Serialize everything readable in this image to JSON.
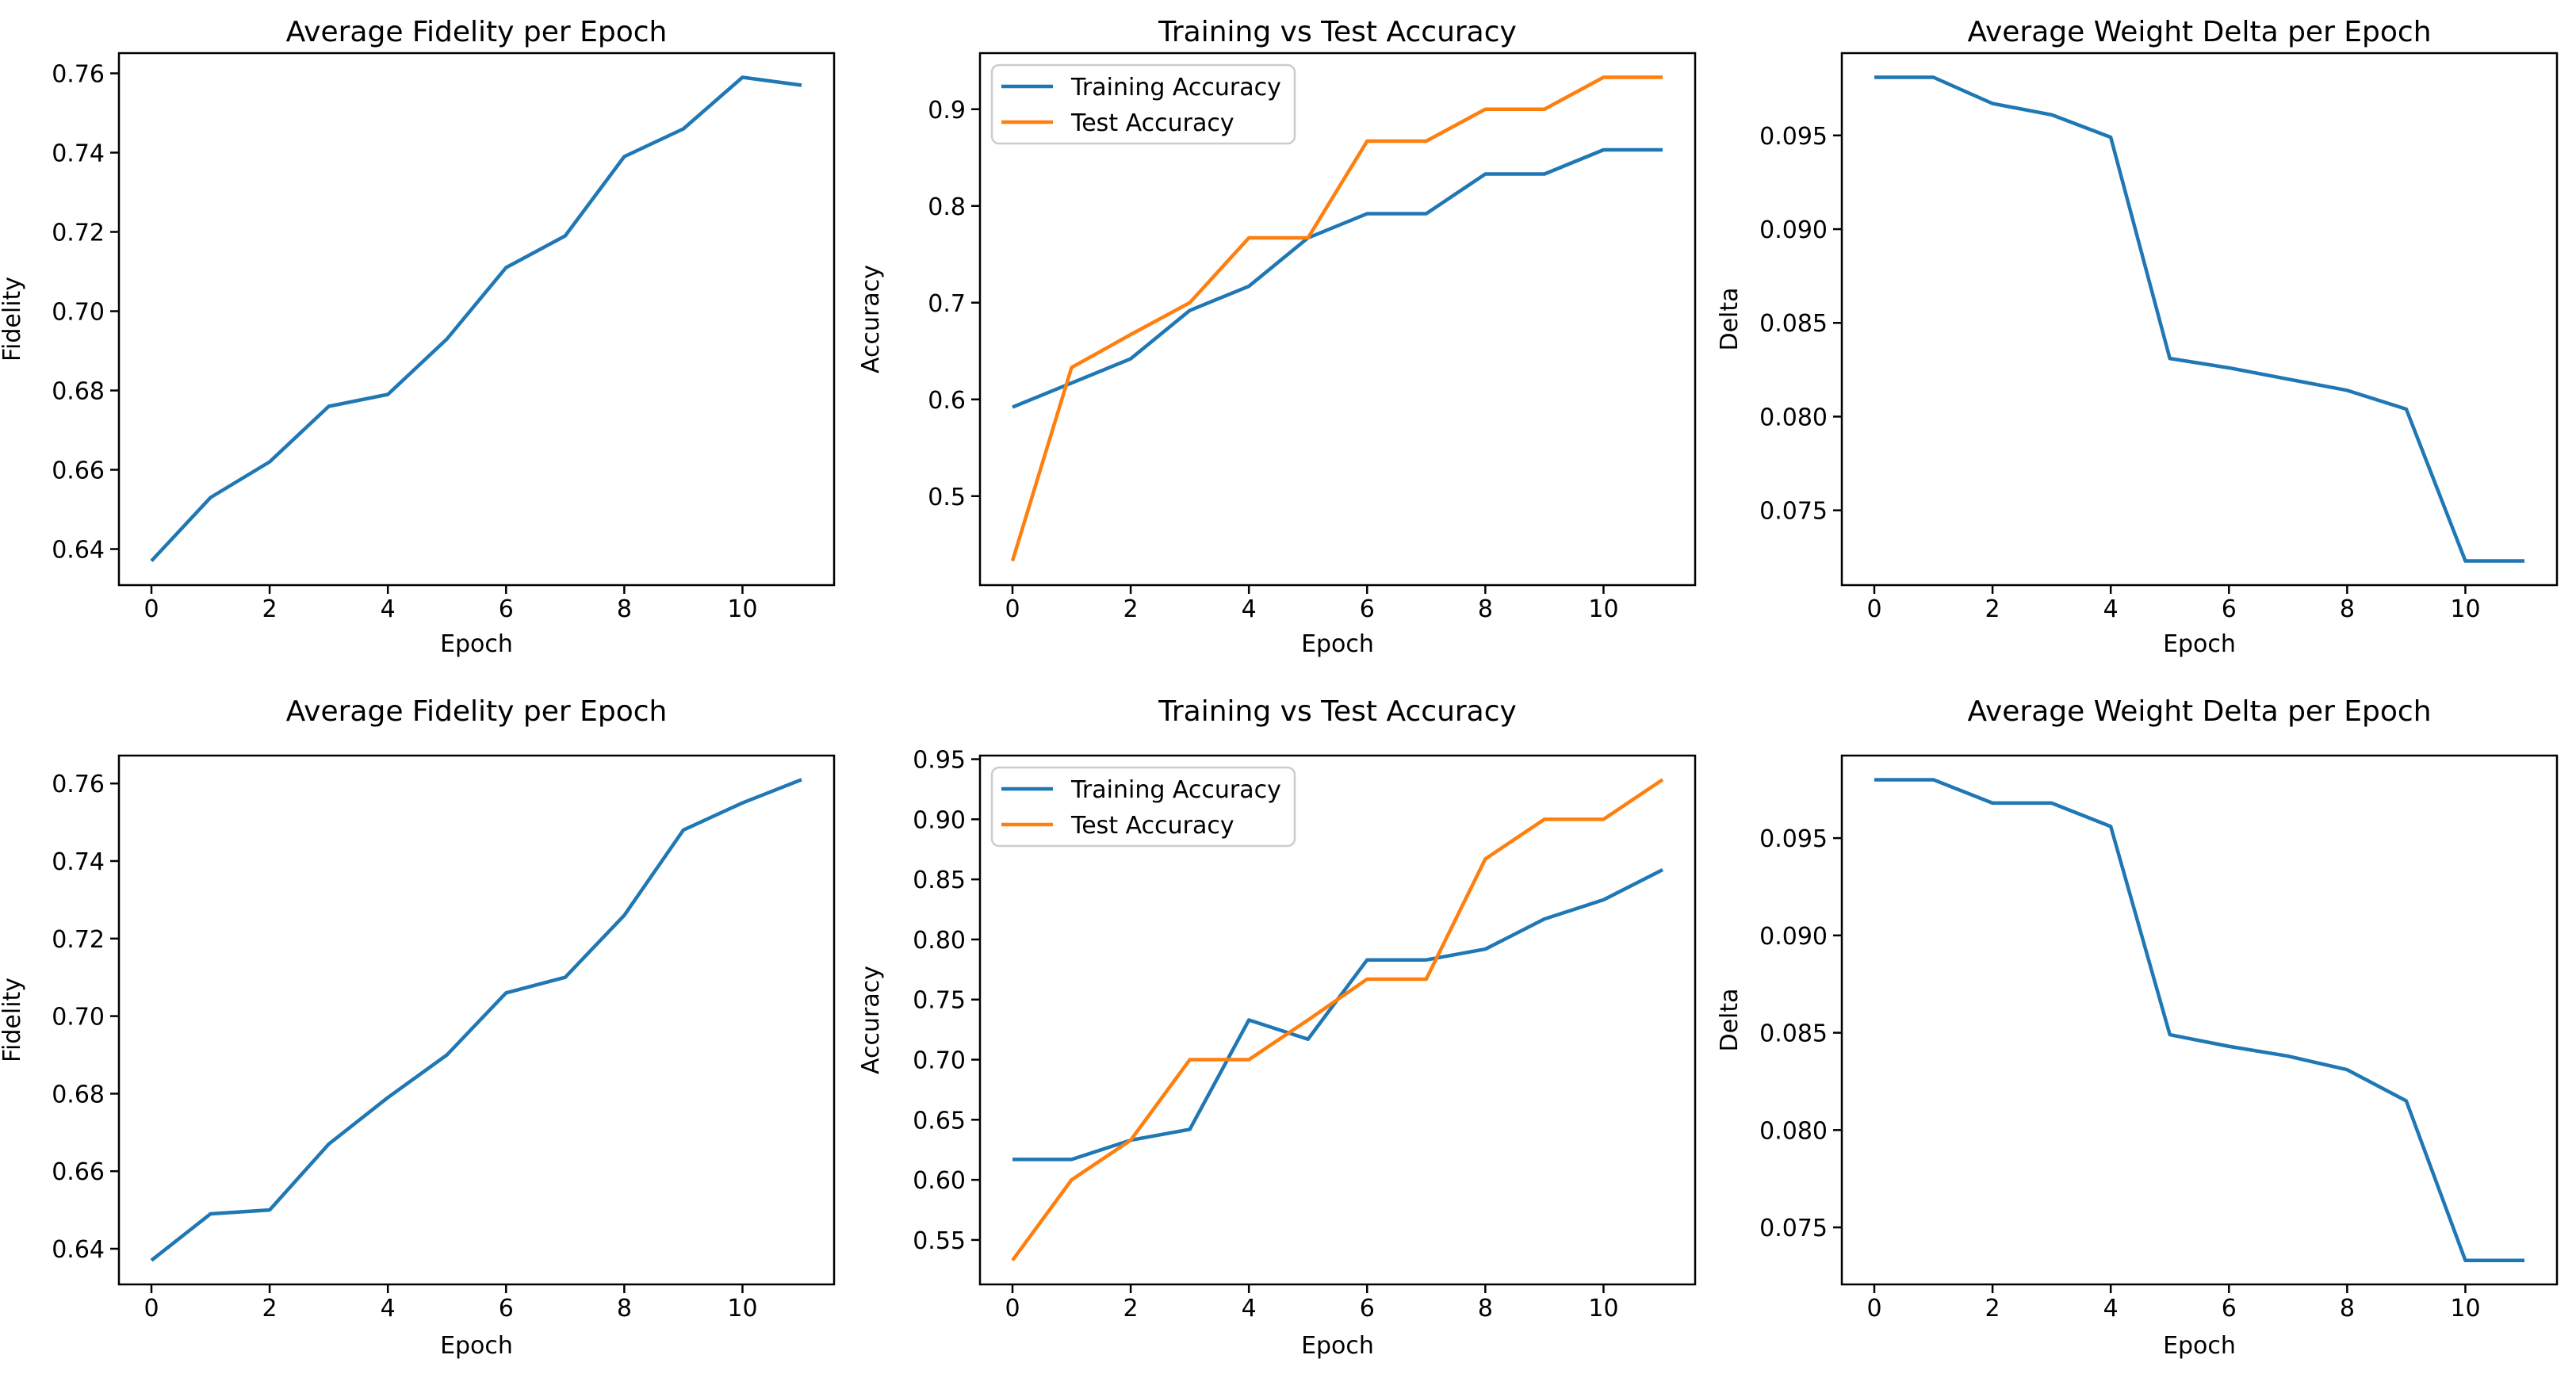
{
  "figure": {
    "background": "#ffffff",
    "rows": 2,
    "cols": 3
  },
  "colors": {
    "series_blue": "#1f77b4",
    "series_orange": "#ff7f0e",
    "text": "#000000",
    "axes_edge": "#000000",
    "legend_border": "#cccccc",
    "legend_face": "#ffffff"
  },
  "chart_data": [
    {
      "id": "run1-fidelity",
      "type": "line",
      "title": "Average Fidelity per Epoch",
      "xlabel": "Epoch",
      "ylabel": "Fidelity",
      "x": [
        0,
        1,
        2,
        3,
        4,
        5,
        6,
        7,
        8,
        9,
        10,
        11
      ],
      "series": [
        {
          "name": "Fidelity",
          "color": "#1f77b4",
          "values": [
            0.637,
            0.653,
            0.662,
            0.676,
            0.679,
            0.693,
            0.711,
            0.719,
            0.739,
            0.746,
            0.759,
            0.757
          ]
        }
      ],
      "legend": {
        "visible": false,
        "position": "upper left"
      },
      "grid": false,
      "xlim": [
        -0.55,
        11.55
      ],
      "ylim": [
        0.6309,
        0.7651
      ],
      "xtick_values": [
        0,
        2,
        4,
        6,
        8,
        10
      ],
      "xtick_labels": [
        "0",
        "2",
        "4",
        "6",
        "8",
        "10"
      ],
      "ytick_values": [
        0.64,
        0.66,
        0.68,
        0.7,
        0.72,
        0.74,
        0.76
      ],
      "ytick_labels": [
        "0.64",
        "0.66",
        "0.68",
        "0.70",
        "0.72",
        "0.74",
        "0.76"
      ]
    },
    {
      "id": "run1-accuracy",
      "type": "line",
      "title": "Training vs Test Accuracy",
      "xlabel": "Epoch",
      "ylabel": "Accuracy",
      "x": [
        0,
        1,
        2,
        3,
        4,
        5,
        6,
        7,
        8,
        9,
        10,
        11
      ],
      "series": [
        {
          "name": "Training Accuracy",
          "color": "#1f77b4",
          "values": [
            0.592,
            0.617,
            0.642,
            0.692,
            0.717,
            0.767,
            0.792,
            0.792,
            0.833,
            0.833,
            0.858,
            0.858
          ]
        },
        {
          "name": "Test Accuracy",
          "color": "#ff7f0e",
          "values": [
            0.433,
            0.633,
            0.667,
            0.7,
            0.767,
            0.767,
            0.867,
            0.867,
            0.9,
            0.9,
            0.933,
            0.933
          ]
        }
      ],
      "legend": {
        "visible": true,
        "position": "upper left"
      },
      "grid": false,
      "xlim": [
        -0.55,
        11.55
      ],
      "ylim": [
        0.408,
        0.958
      ],
      "xtick_values": [
        0,
        2,
        4,
        6,
        8,
        10
      ],
      "xtick_labels": [
        "0",
        "2",
        "4",
        "6",
        "8",
        "10"
      ],
      "ytick_values": [
        0.5,
        0.6,
        0.7,
        0.8,
        0.9
      ],
      "ytick_labels": [
        "0.5",
        "0.6",
        "0.7",
        "0.8",
        "0.9"
      ]
    },
    {
      "id": "run1-weight-delta",
      "type": "line",
      "title": "Average Weight Delta per Epoch",
      "xlabel": "Epoch",
      "ylabel": "Delta",
      "x": [
        0,
        1,
        2,
        3,
        4,
        5,
        6,
        7,
        8,
        9,
        10,
        11
      ],
      "series": [
        {
          "name": "Delta",
          "color": "#1f77b4",
          "values": [
            0.0981,
            0.0981,
            0.0967,
            0.0961,
            0.0949,
            0.0831,
            0.0826,
            0.082,
            0.0814,
            0.0804,
            0.0723,
            0.0723
          ]
        }
      ],
      "legend": {
        "visible": false,
        "position": "upper left"
      },
      "grid": false,
      "xlim": [
        -0.55,
        11.55
      ],
      "ylim": [
        0.07101,
        0.09939
      ],
      "xtick_values": [
        0,
        2,
        4,
        6,
        8,
        10
      ],
      "xtick_labels": [
        "0",
        "2",
        "4",
        "6",
        "8",
        "10"
      ],
      "ytick_values": [
        0.075,
        0.08,
        0.085,
        0.09,
        0.095
      ],
      "ytick_labels": [
        "0.075",
        "0.080",
        "0.085",
        "0.090",
        "0.095"
      ]
    },
    {
      "id": "run2-fidelity",
      "type": "line",
      "title": "Average Fidelity per Epoch",
      "xlabel": "Epoch",
      "ylabel": "Fidelity",
      "x": [
        0,
        1,
        2,
        3,
        4,
        5,
        6,
        7,
        8,
        9,
        10,
        11
      ],
      "series": [
        {
          "name": "Fidelity",
          "color": "#1f77b4",
          "values": [
            0.637,
            0.649,
            0.65,
            0.667,
            0.679,
            0.69,
            0.706,
            0.71,
            0.726,
            0.748,
            0.755,
            0.761
          ]
        }
      ],
      "legend": {
        "visible": false,
        "position": "upper left"
      },
      "grid": false,
      "xlim": [
        -0.55,
        11.55
      ],
      "ylim": [
        0.6308,
        0.7672
      ],
      "xtick_values": [
        0,
        2,
        4,
        6,
        8,
        10
      ],
      "xtick_labels": [
        "0",
        "2",
        "4",
        "6",
        "8",
        "10"
      ],
      "ytick_values": [
        0.64,
        0.66,
        0.68,
        0.7,
        0.72,
        0.74,
        0.76
      ],
      "ytick_labels": [
        "0.64",
        "0.66",
        "0.68",
        "0.70",
        "0.72",
        "0.74",
        "0.76"
      ]
    },
    {
      "id": "run2-accuracy",
      "type": "line",
      "title": "Training vs Test Accuracy",
      "xlabel": "Epoch",
      "ylabel": "Accuracy",
      "x": [
        0,
        1,
        2,
        3,
        4,
        5,
        6,
        7,
        8,
        9,
        10,
        11
      ],
      "series": [
        {
          "name": "Training Accuracy",
          "color": "#1f77b4",
          "values": [
            0.617,
            0.617,
            0.633,
            0.642,
            0.733,
            0.717,
            0.783,
            0.783,
            0.792,
            0.817,
            0.833,
            0.858
          ]
        },
        {
          "name": "Test Accuracy",
          "color": "#ff7f0e",
          "values": [
            0.533,
            0.6,
            0.633,
            0.7,
            0.7,
            0.733,
            0.767,
            0.767,
            0.867,
            0.9,
            0.9,
            0.933
          ]
        }
      ],
      "legend": {
        "visible": true,
        "position": "upper left"
      },
      "grid": false,
      "xlim": [
        -0.55,
        11.55
      ],
      "ylim": [
        0.513,
        0.953
      ],
      "xtick_values": [
        0,
        2,
        4,
        6,
        8,
        10
      ],
      "xtick_labels": [
        "0",
        "2",
        "4",
        "6",
        "8",
        "10"
      ],
      "ytick_values": [
        0.55,
        0.6,
        0.65,
        0.7,
        0.75,
        0.8,
        0.85,
        0.9,
        0.95
      ],
      "ytick_labels": [
        "0.55",
        "0.60",
        "0.65",
        "0.70",
        "0.75",
        "0.80",
        "0.85",
        "0.90",
        "0.95"
      ]
    },
    {
      "id": "run2-weight-delta",
      "type": "line",
      "title": "Average Weight Delta per Epoch",
      "xlabel": "Epoch",
      "ylabel": "Delta",
      "x": [
        0,
        1,
        2,
        3,
        4,
        5,
        6,
        7,
        8,
        9,
        10,
        11
      ],
      "series": [
        {
          "name": "Delta",
          "color": "#1f77b4",
          "values": [
            0.098,
            0.098,
            0.0968,
            0.0968,
            0.0956,
            0.0849,
            0.0843,
            0.0838,
            0.0831,
            0.0815,
            0.0733,
            0.0733
          ]
        }
      ],
      "legend": {
        "visible": false,
        "position": "upper left"
      },
      "grid": false,
      "xlim": [
        -0.55,
        11.55
      ],
      "ylim": [
        0.07207,
        0.09924
      ],
      "xtick_values": [
        0,
        2,
        4,
        6,
        8,
        10
      ],
      "xtick_labels": [
        "0",
        "2",
        "4",
        "6",
        "8",
        "10"
      ],
      "ytick_values": [
        0.075,
        0.08,
        0.085,
        0.09,
        0.095
      ],
      "ytick_labels": [
        "0.075",
        "0.080",
        "0.085",
        "0.090",
        "0.095"
      ]
    }
  ]
}
